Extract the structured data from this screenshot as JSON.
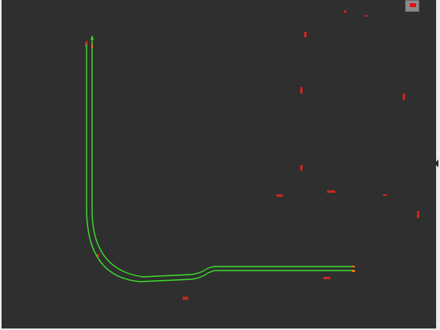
{
  "scene": {
    "background": "#2f2f2f",
    "lane_color": "#3ddc2c",
    "marker_color": "#c8281e",
    "path_endpoint_color": "#e07a1a"
  },
  "controls": {
    "corner_widget_icon": "red-marker-toggle-icon",
    "edge_handle_icon": "collapse-arrow-icon"
  }
}
